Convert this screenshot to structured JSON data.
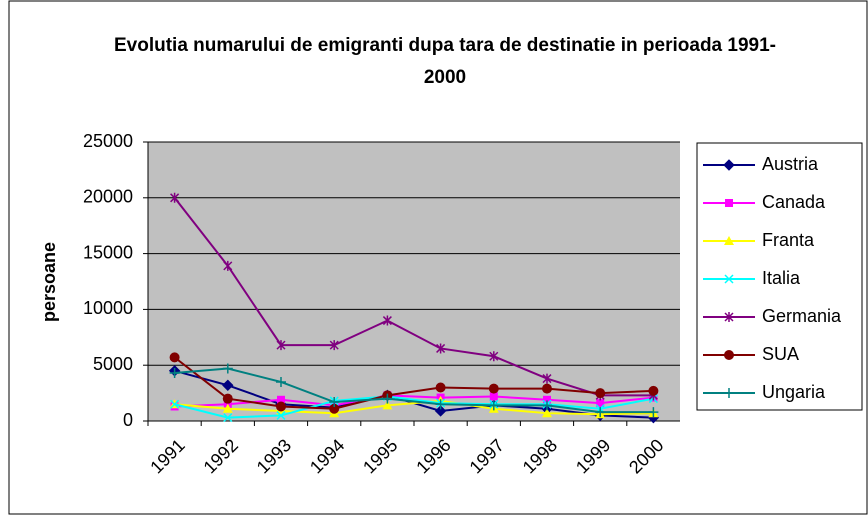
{
  "chart_data": {
    "type": "line",
    "title": "Evolutia numarului de emigranti dupa tara de destinatie in perioada 1991-2000",
    "y_label": "persoane",
    "categories": [
      "1991",
      "1992",
      "1993",
      "1994",
      "1995",
      "1996",
      "1997",
      "1998",
      "1999",
      "2000"
    ],
    "ylim": [
      0,
      25000
    ],
    "yticks": [
      0,
      5000,
      10000,
      15000,
      20000,
      25000
    ],
    "grid": true,
    "legend": "right",
    "series": [
      {
        "name": "Austria",
        "color": "#000080",
        "marker": "diamond",
        "values": [
          4500,
          3200,
          1500,
          1200,
          2300,
          900,
          1400,
          1100,
          500,
          300
        ]
      },
      {
        "name": "Canada",
        "color": "#ff00ff",
        "marker": "square",
        "values": [
          1300,
          1500,
          1900,
          1400,
          2300,
          2100,
          2200,
          1900,
          1600,
          2100
        ]
      },
      {
        "name": "Franta",
        "color": "#ffff00",
        "marker": "triangle",
        "values": [
          1500,
          1100,
          900,
          700,
          1400,
          1800,
          1100,
          700,
          600,
          700
        ]
      },
      {
        "name": "Italia",
        "color": "#00ffff",
        "marker": "x",
        "values": [
          1500,
          300,
          500,
          1800,
          2200,
          1600,
          1500,
          1500,
          1100,
          2000
        ]
      },
      {
        "name": "Germania",
        "color": "#800080",
        "marker": "star",
        "values": [
          20000,
          13900,
          6800,
          6800,
          9000,
          6500,
          5800,
          3800,
          2300,
          2300
        ]
      },
      {
        "name": "SUA",
        "color": "#800000",
        "marker": "circle",
        "values": [
          5700,
          2000,
          1300,
          1100,
          2300,
          3000,
          2900,
          2900,
          2500,
          2700
        ]
      },
      {
        "name": "Ungaria",
        "color": "#008080",
        "marker": "plus",
        "values": [
          4300,
          4700,
          3500,
          1700,
          2000,
          1500,
          1400,
          1400,
          800,
          800
        ]
      }
    ]
  }
}
